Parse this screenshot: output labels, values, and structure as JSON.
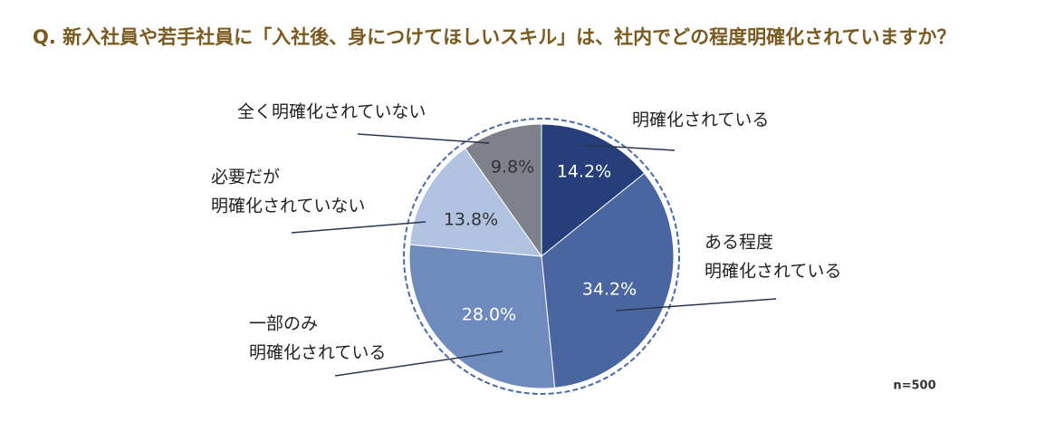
{
  "chart_data": {
    "type": "pie",
    "title": "Q. 新入社員や若手社員に「入社後、身につけてほしいスキル」は、社内でどの程度明確化されていますか？",
    "categories": [
      [
        "明確化されている"
      ],
      [
        "ある程度",
        "明確化されている"
      ],
      [
        "一部のみ",
        "明確化されている"
      ],
      [
        "必要だが",
        "明確化されていない"
      ],
      [
        "全く明確化されていない"
      ]
    ],
    "values": [
      14.2,
      34.2,
      28.0,
      13.8,
      9.8
    ],
    "value_labels": [
      "14.2%",
      "34.2%",
      "28.0%",
      "13.8%",
      "9.8%"
    ],
    "colors": [
      "#263f7a",
      "#4a66a0",
      "#6f8bbd",
      "#b1c3e1",
      "#7e8189"
    ],
    "note": "n=500"
  }
}
